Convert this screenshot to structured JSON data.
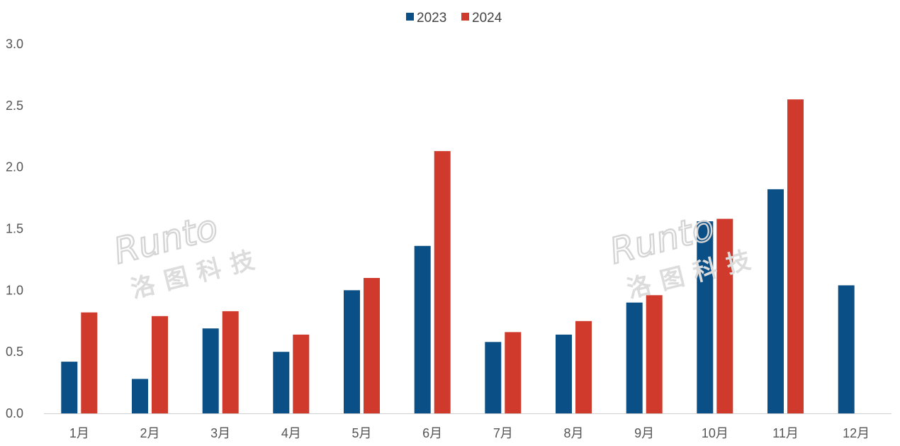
{
  "chart_data": {
    "type": "bar",
    "categories": [
      "1月",
      "2月",
      "3月",
      "4月",
      "5月",
      "6月",
      "7月",
      "8月",
      "9月",
      "10月",
      "11月",
      "12月"
    ],
    "series": [
      {
        "name": "2023",
        "color": "#0a4f86",
        "values": [
          0.42,
          0.28,
          0.69,
          0.5,
          1.0,
          1.36,
          0.58,
          0.64,
          0.9,
          1.56,
          1.82,
          1.04
        ]
      },
      {
        "name": "2024",
        "color": "#cf3a2c",
        "values": [
          0.82,
          0.79,
          0.83,
          0.64,
          1.1,
          2.13,
          0.66,
          0.75,
          0.96,
          1.58,
          2.55,
          null
        ]
      }
    ],
    "ylim": [
      0,
      3.0
    ],
    "yticks": [
      "0.0",
      "0.5",
      "1.0",
      "1.5",
      "2.0",
      "2.5",
      "3.0"
    ],
    "legend_position": "top-center",
    "grid": false
  },
  "watermark": {
    "latin": "Runto",
    "cjk": "洛图科技"
  }
}
